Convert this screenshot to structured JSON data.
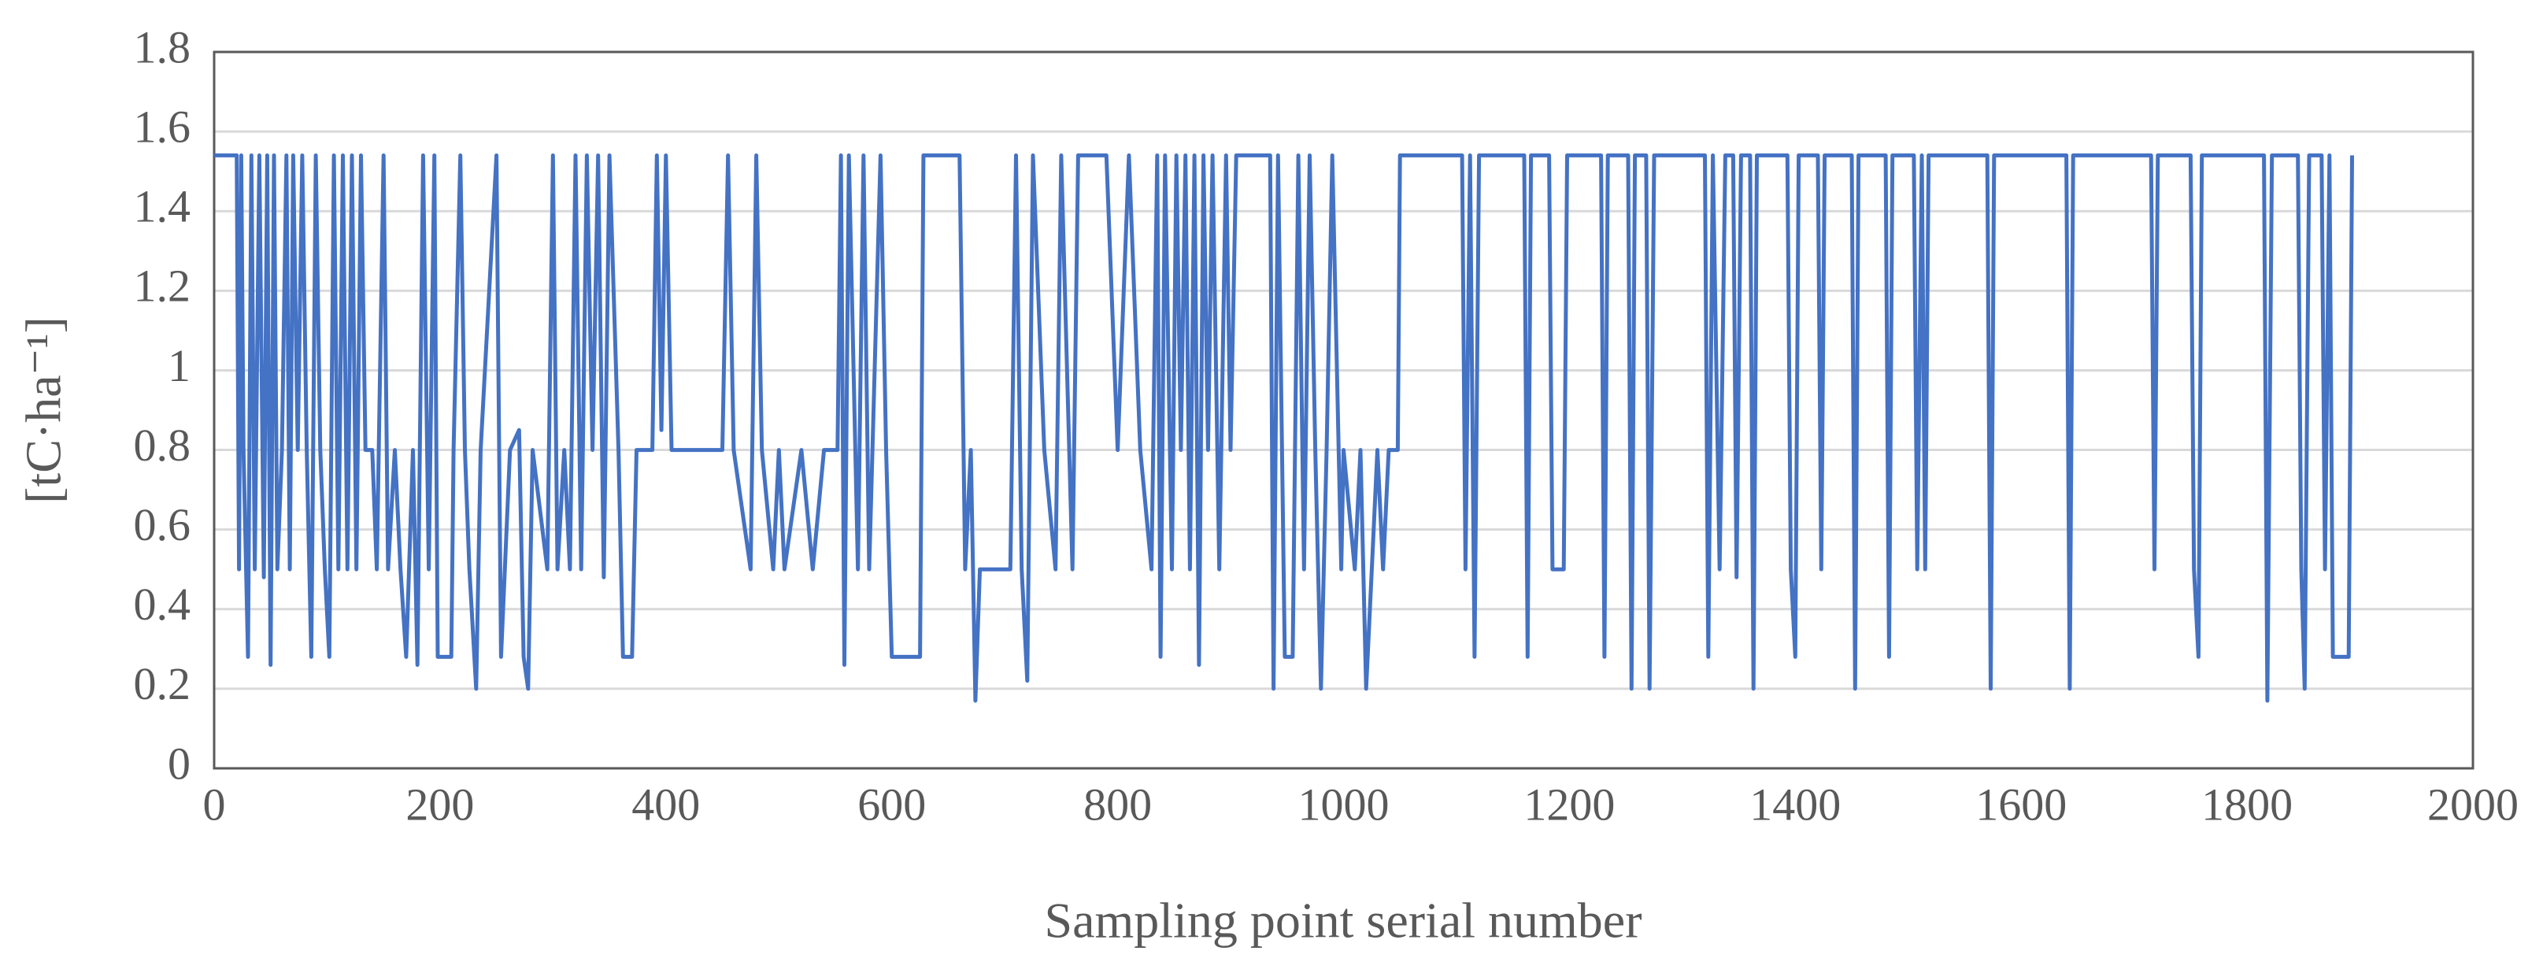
{
  "chart_data": {
    "type": "line",
    "ylabel": "[tC·ha⁻¹]",
    "xlabel": "Sampling point serial number",
    "color": "#4472c4",
    "grid": true,
    "xlim": [
      0,
      2000
    ],
    "xticks": [
      0,
      200,
      400,
      600,
      800,
      1000,
      1200,
      1400,
      1600,
      1800,
      2000
    ],
    "ylim": [
      0,
      1.8
    ],
    "yticks": [
      0,
      0.2,
      0.4,
      0.6,
      0.8,
      1,
      1.2,
      1.4,
      1.6,
      1.8
    ],
    "x": [
      0,
      20,
      22,
      24,
      26,
      30,
      33,
      36,
      40,
      44,
      47,
      50,
      53,
      56,
      60,
      64,
      67,
      70,
      74,
      78,
      82,
      86,
      90,
      94,
      98,
      102,
      106,
      110,
      114,
      118,
      122,
      126,
      130,
      134,
      140,
      144,
      150,
      154,
      160,
      165,
      170,
      176,
      180,
      185,
      190,
      195,
      198,
      210,
      212,
      218,
      222,
      226,
      232,
      236,
      250,
      254,
      262,
      270,
      274,
      278,
      282,
      295,
      300,
      304,
      310,
      315,
      320,
      325,
      330,
      335,
      340,
      345,
      350,
      358,
      362,
      370,
      374,
      388,
      392,
      396,
      400,
      405,
      450,
      455,
      460,
      475,
      480,
      485,
      495,
      500,
      505,
      520,
      530,
      540,
      552,
      555,
      558,
      562,
      570,
      575,
      580,
      590,
      595,
      600,
      625,
      628,
      660,
      665,
      670,
      674,
      678,
      705,
      710,
      715,
      720,
      725,
      735,
      745,
      750,
      760,
      765,
      790,
      800,
      810,
      820,
      830,
      835,
      838,
      842,
      848,
      852,
      856,
      860,
      864,
      868,
      872,
      876,
      880,
      884,
      890,
      896,
      900,
      905,
      935,
      938,
      942,
      948,
      955,
      960,
      965,
      970,
      975,
      980,
      985,
      990,
      998,
      1000,
      1010,
      1015,
      1020,
      1025,
      1030,
      1035,
      1040,
      1048,
      1050,
      1105,
      1108,
      1112,
      1116,
      1120,
      1160,
      1163,
      1166,
      1182,
      1185,
      1195,
      1198,
      1228,
      1231,
      1234,
      1252,
      1255,
      1258,
      1268,
      1271,
      1275,
      1320,
      1323,
      1327,
      1333,
      1338,
      1345,
      1348,
      1352,
      1360,
      1363,
      1366,
      1393,
      1396,
      1400,
      1403,
      1420,
      1423,
      1426,
      1450,
      1453,
      1456,
      1480,
      1483,
      1486,
      1505,
      1508,
      1512,
      1515,
      1518,
      1570,
      1573,
      1576,
      1640,
      1643,
      1646,
      1715,
      1718,
      1721,
      1750,
      1753,
      1757,
      1760,
      1815,
      1818,
      1822,
      1845,
      1848,
      1851,
      1855,
      1866,
      1869,
      1873,
      1876,
      1890,
      1893
    ],
    "values": [
      1.54,
      1.54,
      0.5,
      1.54,
      0.8,
      0.28,
      1.54,
      0.5,
      1.54,
      0.48,
      1.54,
      0.26,
      1.54,
      0.5,
      0.8,
      1.54,
      0.5,
      1.54,
      0.8,
      1.54,
      0.8,
      0.28,
      1.54,
      0.8,
      0.5,
      0.28,
      1.54,
      0.5,
      1.54,
      0.5,
      1.54,
      0.5,
      1.54,
      0.8,
      0.8,
      0.5,
      1.54,
      0.5,
      0.8,
      0.5,
      0.28,
      0.8,
      0.26,
      1.54,
      0.5,
      1.54,
      0.28,
      0.28,
      0.8,
      1.54,
      0.8,
      0.5,
      0.2,
      0.8,
      1.54,
      0.28,
      0.8,
      0.85,
      0.28,
      0.2,
      0.8,
      0.5,
      1.54,
      0.5,
      0.8,
      0.5,
      1.54,
      0.5,
      1.54,
      0.8,
      1.54,
      0.48,
      1.54,
      0.8,
      0.28,
      0.28,
      0.8,
      0.8,
      1.54,
      0.85,
      1.54,
      0.8,
      0.8,
      1.54,
      0.8,
      0.5,
      1.54,
      0.8,
      0.5,
      0.8,
      0.5,
      0.8,
      0.5,
      0.8,
      0.8,
      1.54,
      0.26,
      1.54,
      0.5,
      1.54,
      0.5,
      1.54,
      0.8,
      0.28,
      0.28,
      1.54,
      1.54,
      0.5,
      0.8,
      0.17,
      0.5,
      0.5,
      1.54,
      0.5,
      0.22,
      1.54,
      0.8,
      0.5,
      1.54,
      0.5,
      1.54,
      1.54,
      0.8,
      1.54,
      0.8,
      0.5,
      1.54,
      0.28,
      1.54,
      0.5,
      1.54,
      0.8,
      1.54,
      0.5,
      1.54,
      0.26,
      1.54,
      0.8,
      1.54,
      0.5,
      1.54,
      0.8,
      1.54,
      1.54,
      0.2,
      1.54,
      0.28,
      0.28,
      1.54,
      0.5,
      1.54,
      0.8,
      0.2,
      0.8,
      1.54,
      0.5,
      0.8,
      0.5,
      0.8,
      0.2,
      0.5,
      0.8,
      0.5,
      0.8,
      0.8,
      1.54,
      1.54,
      0.5,
      1.54,
      0.28,
      1.54,
      1.54,
      0.28,
      1.54,
      1.54,
      0.5,
      0.5,
      1.54,
      1.54,
      0.28,
      1.54,
      1.54,
      0.2,
      1.54,
      1.54,
      0.2,
      1.54,
      1.54,
      0.28,
      1.54,
      0.5,
      1.54,
      1.54,
      0.48,
      1.54,
      1.54,
      0.2,
      1.54,
      1.54,
      0.5,
      0.28,
      1.54,
      1.54,
      0.5,
      1.54,
      1.54,
      0.2,
      1.54,
      1.54,
      0.28,
      1.54,
      1.54,
      0.5,
      1.54,
      0.5,
      1.54,
      1.54,
      0.2,
      1.54,
      1.54,
      0.2,
      1.54,
      1.54,
      0.5,
      1.54,
      1.54,
      0.5,
      0.28,
      1.54,
      1.54,
      0.17,
      1.54,
      1.54,
      0.5,
      0.2,
      1.54,
      1.54,
      0.5,
      1.54,
      0.28,
      0.28,
      1.54
    ]
  }
}
